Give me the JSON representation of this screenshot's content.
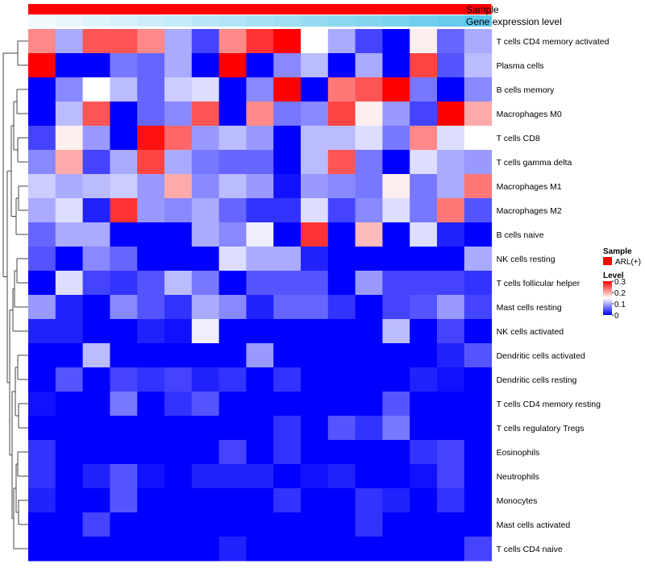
{
  "chart_data": {
    "type": "heatmap",
    "annotation_tracks": [
      "Sample",
      "Gene expression level"
    ],
    "rows": [
      "T cells CD4 memory activated",
      "Plasma cells",
      "B cells memory",
      "Macrophages M0",
      "T cells CD8",
      "T cells gamma delta",
      "Macrophages M1",
      "Macrophages M2",
      "B cells naive",
      "NK cells resting",
      "T cells follicular helper",
      "Mast cells resting",
      "NK cells activated",
      "Dendritic cells activated",
      "Dendritic cells resting",
      "T cells CD4 memory resting",
      "T cells regulatory  Tregs",
      "Eosinophils",
      "Neutrophils",
      "Monocytes",
      "Mast cells activated",
      "T cells CD4 naive"
    ],
    "columns": 17,
    "values": [
      [
        0.22,
        0.1,
        0.25,
        0.25,
        0.22,
        0.1,
        0.04,
        0.22,
        0.27,
        0.3,
        0.15,
        0.1,
        0.04,
        0.0,
        0.16,
        0.06,
        0.1
      ],
      [
        0.3,
        0.0,
        0.0,
        0.07,
        0.06,
        0.1,
        0.0,
        0.3,
        0.0,
        0.08,
        0.11,
        0.0,
        0.1,
        0.0,
        0.26,
        0.05,
        0.11
      ],
      [
        0.0,
        0.08,
        0.15,
        0.11,
        0.06,
        0.12,
        0.13,
        0.0,
        0.08,
        0.3,
        0.0,
        0.23,
        0.25,
        0.3,
        0.07,
        0.0,
        0.08
      ],
      [
        0.0,
        0.11,
        0.25,
        0.0,
        0.06,
        0.08,
        0.25,
        0.0,
        0.22,
        0.07,
        0.08,
        0.26,
        0.16,
        0.09,
        0.04,
        0.3,
        0.2
      ],
      [
        0.04,
        0.16,
        0.09,
        0.0,
        0.29,
        0.24,
        0.09,
        0.11,
        0.09,
        0.0,
        0.11,
        0.11,
        0.13,
        0.07,
        0.22,
        0.13,
        0.15
      ],
      [
        0.08,
        0.2,
        0.04,
        0.1,
        0.26,
        0.1,
        0.07,
        0.06,
        0.06,
        0.0,
        0.11,
        0.25,
        0.07,
        0.0,
        0.13,
        0.1,
        0.09
      ],
      [
        0.12,
        0.1,
        0.11,
        0.12,
        0.09,
        0.2,
        0.08,
        0.11,
        0.09,
        0.01,
        0.09,
        0.08,
        0.07,
        0.16,
        0.07,
        0.1,
        0.23
      ],
      [
        0.1,
        0.13,
        0.02,
        0.27,
        0.09,
        0.08,
        0.1,
        0.06,
        0.03,
        0.03,
        0.13,
        0.04,
        0.08,
        0.13,
        0.07,
        0.23,
        0.05
      ],
      [
        0.06,
        0.1,
        0.1,
        0.0,
        0.0,
        0.0,
        0.1,
        0.08,
        0.14,
        0.0,
        0.27,
        0.0,
        0.19,
        0.0,
        0.13,
        0.02,
        0.0
      ],
      [
        0.05,
        0.0,
        0.08,
        0.06,
        0.0,
        0.0,
        0.0,
        0.13,
        0.1,
        0.1,
        0.02,
        0.0,
        0.0,
        0.0,
        0.0,
        0.0,
        0.1
      ],
      [
        0.0,
        0.13,
        0.04,
        0.03,
        0.05,
        0.11,
        0.07,
        0.0,
        0.05,
        0.05,
        0.05,
        0.0,
        0.09,
        0.04,
        0.04,
        0.04,
        0.03
      ],
      [
        0.09,
        0.02,
        0.0,
        0.08,
        0.05,
        0.03,
        0.1,
        0.08,
        0.02,
        0.06,
        0.06,
        0.03,
        0.0,
        0.04,
        0.05,
        0.09,
        0.04
      ],
      [
        0.02,
        0.02,
        0.0,
        0.0,
        0.02,
        0.01,
        0.14,
        0.0,
        0.0,
        0.0,
        0.0,
        0.0,
        0.0,
        0.11,
        0.0,
        0.04,
        0.0
      ],
      [
        0.0,
        0.0,
        0.11,
        0.0,
        0.0,
        0.0,
        0.0,
        0.0,
        0.09,
        0.0,
        0.0,
        0.0,
        0.0,
        0.0,
        0.0,
        0.02,
        0.05
      ],
      [
        0.0,
        0.05,
        0.0,
        0.04,
        0.03,
        0.04,
        0.02,
        0.03,
        0.0,
        0.03,
        0.0,
        0.0,
        0.0,
        0.0,
        0.02,
        0.01,
        0.0
      ],
      [
        0.01,
        0.0,
        0.0,
        0.07,
        0.0,
        0.03,
        0.05,
        0.0,
        0.0,
        0.0,
        0.0,
        0.0,
        0.0,
        0.05,
        0.0,
        0.0,
        0.0
      ],
      [
        0.0,
        0.0,
        0.0,
        0.0,
        0.0,
        0.0,
        0.0,
        0.0,
        0.0,
        0.03,
        0.0,
        0.05,
        0.03,
        0.07,
        0.0,
        0.0,
        0.0
      ],
      [
        0.03,
        0.0,
        0.0,
        0.0,
        0.0,
        0.0,
        0.0,
        0.04,
        0.0,
        0.03,
        0.0,
        0.0,
        0.0,
        0.0,
        0.03,
        0.04,
        0.0
      ],
      [
        0.03,
        0.0,
        0.02,
        0.05,
        0.01,
        0.0,
        0.02,
        0.02,
        0.02,
        0.0,
        0.01,
        0.02,
        0.0,
        0.0,
        0.01,
        0.04,
        0.0
      ],
      [
        0.02,
        0.0,
        0.0,
        0.05,
        0.0,
        0.0,
        0.0,
        0.0,
        0.0,
        0.03,
        0.0,
        0.0,
        0.03,
        0.02,
        0.0,
        0.03,
        0.0
      ],
      [
        0.0,
        0.0,
        0.04,
        0.0,
        0.0,
        0.0,
        0.0,
        0.0,
        0.0,
        0.0,
        0.0,
        0.0,
        0.03,
        0.0,
        0.0,
        0.0,
        0.0
      ],
      [
        0.0,
        0.0,
        0.0,
        0.0,
        0.0,
        0.0,
        0.0,
        0.02,
        0.0,
        0.0,
        0.0,
        0.0,
        0.0,
        0.0,
        0.0,
        0.0,
        0.04
      ]
    ],
    "gene_expression_level": [
      0.0,
      0.06,
      0.12,
      0.19,
      0.25,
      0.31,
      0.38,
      0.44,
      0.5,
      0.56,
      0.62,
      0.69,
      0.75,
      0.81,
      0.88,
      0.94,
      1.0
    ],
    "color_scale": {
      "low": "#0000ff",
      "mid": "#ffffff",
      "high": "#ff0000",
      "domain": [
        0,
        0.15,
        0.3
      ],
      "legend_ticks": [
        "0.3",
        "0.2",
        "0.1",
        "0"
      ]
    },
    "expression_colors": {
      "low": "#f2fafd",
      "high": "#5ec8ec"
    },
    "sample_color": "#ff0000",
    "legend": {
      "sample_title": "Sample",
      "sample_label": "ARL(+)",
      "level_title": "Level"
    }
  }
}
